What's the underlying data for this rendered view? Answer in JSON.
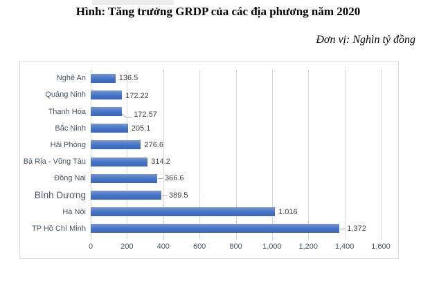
{
  "page": {
    "title": "Hình: Tăng trưởng GRDP của các địa phương năm 2020",
    "unit_note": "Đơn vị: Nghìn tỷ đồng"
  },
  "chart_data": {
    "type": "bar",
    "orientation": "horizontal",
    "title": "Hình: Tăng trưởng GRDP của các địa phương năm 2020",
    "unit_label": "Đơn vị: Nghìn tỷ đồng",
    "categories": [
      "Nghệ An",
      "Quảng Ninh",
      "Thanh Hóa",
      "Bắc Ninh",
      "Hải Phòng",
      "Bà Rịa - Vũng Tàu",
      "Đồng Nai",
      "Bình Dương",
      "Hà Nội",
      "TP Hồ Chí Minh"
    ],
    "values": [
      136.5,
      172.22,
      172.57,
      205.1,
      276.6,
      314.2,
      366.6,
      389.5,
      1016,
      1372
    ],
    "value_labels": [
      "136.5",
      "172.22",
      "172.57",
      "205.1",
      "276.6",
      "314.2",
      "366.6",
      "389.5",
      "1.016",
      "1,372"
    ],
    "leaders": [
      "none",
      "none",
      "curve",
      "none",
      "none",
      "none",
      "dash",
      "dash",
      "none",
      "dash"
    ],
    "label_dy": [
      0,
      2,
      4,
      0,
      0,
      0,
      0,
      0,
      0,
      0
    ],
    "emphasized_category": "Bình Dương",
    "xlabel": "",
    "ylabel": "",
    "xlim": [
      0,
      1600
    ],
    "x_ticks": [
      "0",
      "200",
      "400",
      "600",
      "800",
      "1,000",
      "1,200",
      "1,400",
      "1,600"
    ],
    "grid": true,
    "legend_position": "none",
    "colors": {
      "bar_top": "#7a96d2",
      "bar": "#4472c4",
      "bar_bottom": "#3a66bb",
      "gridline": "#d9d9d9",
      "chart_border": "#d9d9d9",
      "category_label": "#44546a",
      "tick_label": "#44546a",
      "data_label": "#404040",
      "leader_line": "#a3aec0"
    }
  }
}
